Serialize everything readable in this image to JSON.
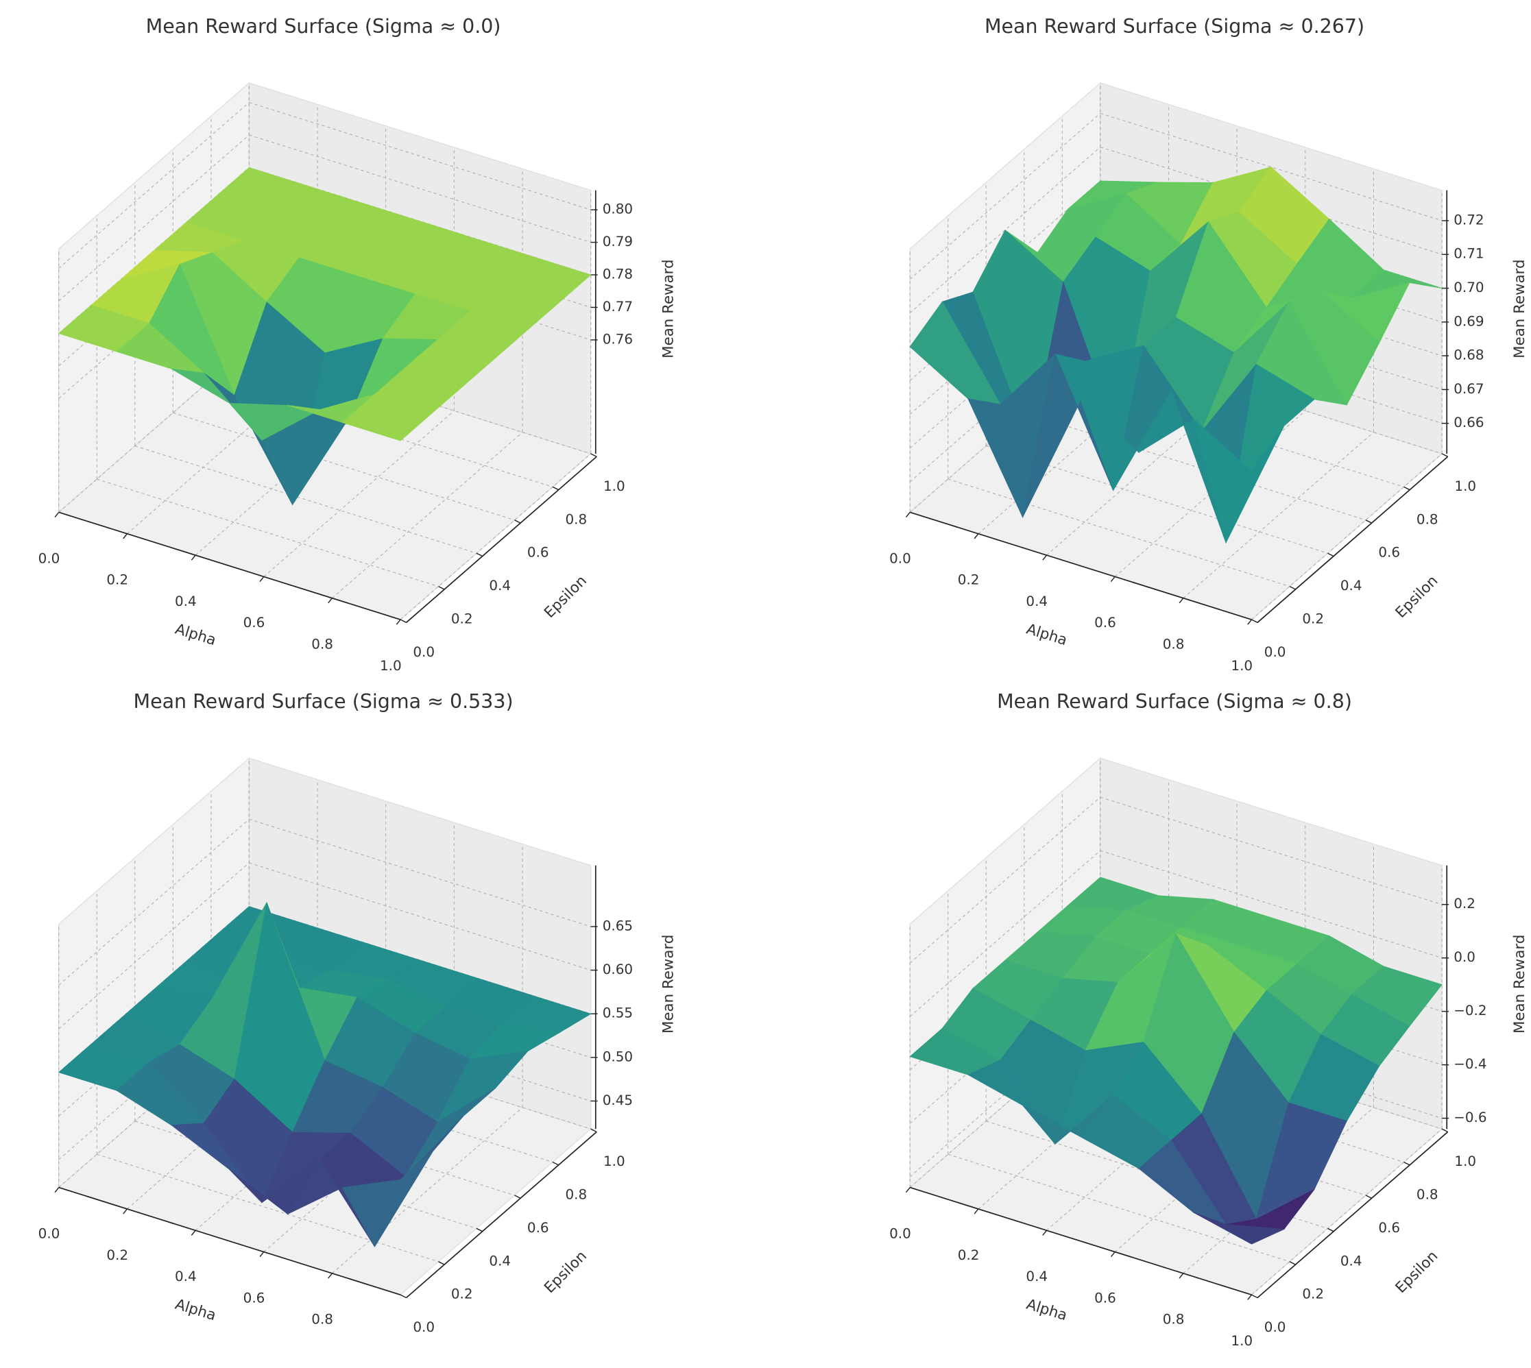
{
  "chart_data": [
    {
      "type": "surface",
      "title": "Mean Reward Surface (Sigma ≈ 0.0)",
      "x_label": "Alpha",
      "y_label": "Epsilon",
      "z_label": "Mean Reward",
      "colormap": "viridis",
      "x": [
        0,
        0.17,
        0.33,
        0.5,
        0.67,
        0.83,
        1.0
      ],
      "y": [
        0,
        0.17,
        0.33,
        0.5,
        0.67,
        0.83,
        1.0
      ],
      "z": [
        [
          0.78,
          0.78,
          0.78,
          0.775,
          0.78,
          0.78,
          0.78
        ],
        [
          0.78,
          0.78,
          0.77,
          0.755,
          0.77,
          0.78,
          0.78
        ],
        [
          0.78,
          0.79,
          0.755,
          0.727,
          0.76,
          0.78,
          0.78
        ],
        [
          0.78,
          0.785,
          0.775,
          0.765,
          0.775,
          0.78,
          0.78
        ],
        [
          0.78,
          0.78,
          0.78,
          0.78,
          0.78,
          0.78,
          0.78
        ],
        [
          0.78,
          0.78,
          0.78,
          0.78,
          0.78,
          0.78,
          0.78
        ],
        [
          0.78,
          0.78,
          0.78,
          0.78,
          0.78,
          0.78,
          0.78
        ]
      ],
      "xlim": [
        0,
        1
      ],
      "ylim": [
        0,
        1
      ],
      "zlim": [
        0.725,
        0.806
      ],
      "xticks": [
        {
          "value": 0,
          "label": "0.0"
        },
        0.2,
        0.4,
        0.6,
        0.8,
        {
          "value": 1,
          "label": "1.0"
        }
      ],
      "yticks": [
        {
          "value": 0,
          "label": "0.0"
        },
        0.2,
        0.4,
        0.6,
        0.8,
        {
          "value": 1,
          "label": "1.0"
        }
      ],
      "zticks": [
        0.76,
        0.77,
        0.78,
        0.79,
        {
          "value": 0.8,
          "label": "0.80"
        }
      ]
    },
    {
      "type": "surface",
      "title": "Mean Reward Surface (Sigma ≈ 0.267)",
      "x_label": "Alpha",
      "y_label": "Epsilon",
      "z_label": "Mean Reward",
      "colormap": "viridis",
      "x": [
        0,
        0.17,
        0.33,
        0.5,
        0.67,
        0.83,
        1.0
      ],
      "y": [
        0,
        0.17,
        0.33,
        0.5,
        0.67,
        0.83,
        1.0
      ],
      "z": [
        [
          0.7,
          0.69,
          0.66,
          0.7,
          0.69,
          0.705,
          0.695
        ],
        [
          0.705,
          0.68,
          0.7,
          0.665,
          0.7,
          0.66,
          0.7
        ],
        [
          0.7,
          0.66,
          0.69,
          0.7,
          0.68,
          0.705,
          0.7
        ],
        [
          0.71,
          0.7,
          0.66,
          0.7,
          0.695,
          0.715,
          0.69
        ],
        [
          0.695,
          0.705,
          0.7,
          0.72,
          0.7,
          0.71,
          0.7
        ],
        [
          0.7,
          0.71,
          0.7,
          0.715,
          0.705,
          0.7,
          0.71
        ],
        [
          0.7,
          0.705,
          0.71,
          0.72,
          0.71,
          0.7,
          0.7
        ]
      ],
      "xlim": [
        0,
        1
      ],
      "ylim": [
        0,
        1
      ],
      "zlim": [
        0.651,
        0.729
      ],
      "xticks": [
        {
          "value": 0,
          "label": "0.0"
        },
        0.2,
        0.4,
        0.6,
        0.8,
        {
          "value": 1,
          "label": "1.0"
        }
      ],
      "yticks": [
        {
          "value": 0,
          "label": "0.0"
        },
        0.2,
        0.4,
        0.6,
        0.8,
        {
          "value": 1,
          "label": "1.0"
        }
      ],
      "zticks": [
        0.66,
        0.67,
        0.68,
        0.69,
        {
          "value": 0.7,
          "label": "0.70"
        },
        0.71,
        0.72
      ]
    },
    {
      "type": "surface",
      "title": "Mean Reward Surface (Sigma ≈ 0.533)",
      "x_label": "Alpha",
      "y_label": "Epsilon",
      "z_label": "Mean Reward",
      "colormap": "viridis",
      "x": [
        0,
        0.17,
        0.33,
        0.5,
        0.67,
        0.83,
        1.0
      ],
      "y": [
        0,
        0.17,
        0.33,
        0.5,
        0.67,
        0.83,
        1.0
      ],
      "z": [
        [
          0.55,
          0.55,
          0.53,
          0.5,
          0.47,
          0.52,
          0.55
        ],
        [
          0.55,
          0.55,
          0.5,
          0.43,
          0.5,
          0.42,
          0.55
        ],
        [
          0.55,
          0.54,
          0.52,
          0.48,
          0.5,
          0.47,
          0.56
        ],
        [
          0.55,
          0.56,
          0.69,
          0.53,
          0.52,
          0.5,
          0.56
        ],
        [
          0.55,
          0.55,
          0.56,
          0.57,
          0.55,
          0.54,
          0.57
        ],
        [
          0.55,
          0.55,
          0.55,
          0.56,
          0.55,
          0.55,
          0.56
        ],
        [
          0.55,
          0.55,
          0.55,
          0.55,
          0.55,
          0.55,
          0.55
        ]
      ],
      "xlim": [
        0,
        1
      ],
      "ylim": [
        0,
        1
      ],
      "zlim": [
        0.418,
        0.72
      ],
      "xticks": [
        {
          "value": 0,
          "label": "0.0"
        },
        0.2,
        0.4,
        0.6,
        0.8
      ],
      "yticks": [
        {
          "value": 0,
          "label": "0.0"
        },
        0.2,
        0.4,
        0.6,
        0.8,
        {
          "value": 1,
          "label": "1.0"
        }
      ],
      "zticks": [
        0.45,
        {
          "value": 0.5,
          "label": "0.50"
        },
        0.55,
        {
          "value": 0.6,
          "label": "0.60"
        },
        0.65
      ]
    },
    {
      "type": "surface",
      "title": "Mean Reward Surface (Sigma ≈ 0.8)",
      "x_label": "Alpha",
      "y_label": "Epsilon",
      "z_label": "Mean Reward",
      "colormap": "viridis",
      "x": [
        0,
        0.17,
        0.33,
        0.5,
        0.67,
        0.83,
        1.0
      ],
      "y": [
        0,
        0.17,
        0.33,
        0.5,
        0.67,
        0.83,
        1.0
      ],
      "z": [
        [
          -0.15,
          -0.15,
          -0.2,
          -0.25,
          -0.3,
          -0.4,
          -0.45
        ],
        [
          -0.15,
          -0.2,
          -0.45,
          -0.2,
          -0.3,
          -0.55,
          -0.5
        ],
        [
          -0.1,
          -0.15,
          -0.2,
          -0.1,
          -0.3,
          -0.63,
          -0.45
        ],
        [
          -0.1,
          -0.1,
          -0.05,
          0.2,
          -0.1,
          -0.3,
          -0.3
        ],
        [
          -0.1,
          -0.05,
          -0.05,
          0.05,
          -0.05,
          -0.15,
          -0.2
        ],
        [
          -0.1,
          -0.05,
          -0.05,
          -0.05,
          -0.05,
          -0.1,
          -0.15
        ],
        [
          -0.1,
          -0.1,
          -0.05,
          -0.05,
          -0.05,
          -0.1,
          -0.1
        ]
      ],
      "xlim": [
        0,
        1
      ],
      "ylim": [
        0,
        1
      ],
      "zlim": [
        -0.64,
        0.346
      ],
      "xticks": [
        {
          "value": 0,
          "label": "0.0"
        },
        0.2,
        0.4,
        0.6,
        0.8,
        {
          "value": 1,
          "label": "1.0"
        }
      ],
      "yticks": [
        {
          "value": 0,
          "label": "0.0"
        },
        0.2,
        0.4,
        0.6,
        0.8,
        {
          "value": 1,
          "label": "1.0"
        }
      ],
      "zticks": [
        {
          "value": -0.6,
          "label": "−0.6"
        },
        {
          "value": -0.4,
          "label": "−0.4"
        },
        {
          "value": -0.2,
          "label": "−0.2"
        },
        {
          "value": 0,
          "label": "0.0"
        },
        0.2
      ]
    }
  ]
}
